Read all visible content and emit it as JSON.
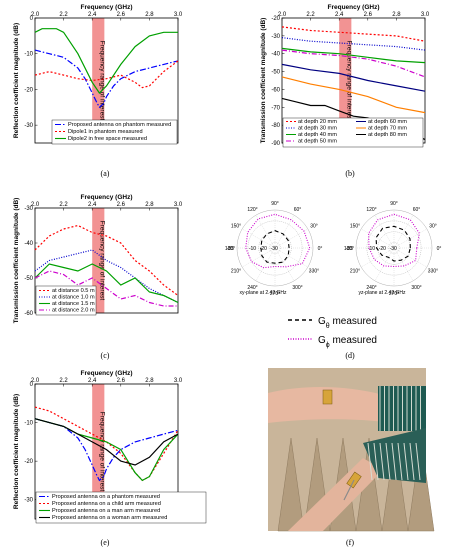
{
  "chart_data": [
    {
      "id": "a",
      "type": "line",
      "panel_label": "(a)",
      "xlabel": "Frequency (GHz)",
      "ylabel": "Reflection coefficient magnitude (dB)",
      "xlim": [
        2.0,
        3.0
      ],
      "ylim": [
        -35,
        0
      ],
      "xticks": [
        "2.0",
        "2.2",
        "2.4",
        "2.6",
        "2.8",
        "3.0"
      ],
      "yticks": [
        "0",
        "-10",
        "-20",
        "-30"
      ],
      "band_label": "Frequency range of interest",
      "band": [
        2.4,
        2.485
      ],
      "legend_position": "bottom",
      "series": [
        {
          "name": "Proposed antenna on phantom measured",
          "color": "#0000ff",
          "dash": "6,2,1.5,2",
          "x": [
            2.0,
            2.1,
            2.2,
            2.3,
            2.35,
            2.4,
            2.43,
            2.45,
            2.48,
            2.5,
            2.55,
            2.6,
            2.7,
            2.8,
            2.9,
            3.0
          ],
          "y": [
            -9,
            -10,
            -11,
            -14,
            -17,
            -21,
            -23.5,
            -25,
            -24,
            -22,
            -19,
            -17,
            -15,
            -14,
            -13,
            -12
          ]
        },
        {
          "name": "Dipole1 in phantom measured",
          "color": "#ff0000",
          "dash": "2,2",
          "x": [
            2.0,
            2.1,
            2.2,
            2.3,
            2.4,
            2.5,
            2.6,
            2.7,
            2.75,
            2.8,
            2.85,
            2.9,
            3.0
          ],
          "y": [
            -16,
            -15,
            -16,
            -17,
            -17.5,
            -17,
            -16,
            -18,
            -19.5,
            -19,
            -17,
            -15,
            -12
          ]
        },
        {
          "name": "Dipole2 in free space measured",
          "color": "#00a000",
          "dash": "",
          "x": [
            2.0,
            2.05,
            2.1,
            2.15,
            2.2,
            2.3,
            2.4,
            2.45,
            2.5,
            2.6,
            2.7,
            2.8,
            2.9,
            3.0
          ],
          "y": [
            -4,
            -3,
            -3,
            -3,
            -4,
            -10,
            -18,
            -21,
            -19,
            -13,
            -8,
            -5,
            -4,
            -4
          ]
        }
      ]
    },
    {
      "id": "b",
      "type": "line",
      "panel_label": "(b)",
      "xlabel": "Frequency (GHz)",
      "ylabel": "Transmission coefficient magnitude (dB)",
      "xlim": [
        2.0,
        3.0
      ],
      "ylim": [
        -90,
        -20
      ],
      "xticks": [
        "2.0",
        "2.2",
        "2.4",
        "2.6",
        "2.8",
        "3.0"
      ],
      "yticks": [
        "-20",
        "-30",
        "-40",
        "-50",
        "-60",
        "-70",
        "-80",
        "-90"
      ],
      "band_label": "Frequency range of interest",
      "band": [
        2.4,
        2.485
      ],
      "legend_position": "bottom",
      "series": [
        {
          "name": "at depth 20 mm",
          "color": "#ff0000",
          "dash": "2,2",
          "x": [
            2.0,
            2.2,
            2.4,
            2.6,
            2.8,
            3.0
          ],
          "y": [
            -25,
            -27,
            -28,
            -29,
            -30,
            -33
          ]
        },
        {
          "name": "at depth 30 mm",
          "color": "#0000cc",
          "dash": "1,1.5",
          "x": [
            2.0,
            2.2,
            2.4,
            2.6,
            2.8,
            3.0
          ],
          "y": [
            -31,
            -33,
            -34,
            -35,
            -36,
            -38
          ]
        },
        {
          "name": "at depth 40 mm",
          "color": "#00a000",
          "dash": "",
          "x": [
            2.0,
            2.2,
            2.4,
            2.6,
            2.8,
            3.0
          ],
          "y": [
            -37,
            -39,
            -40,
            -42,
            -44,
            -45
          ]
        },
        {
          "name": "at depth 50 mm",
          "color": "#cc00cc",
          "dash": "5,2,1,2",
          "x": [
            2.0,
            2.2,
            2.4,
            2.6,
            2.8,
            3.0
          ],
          "y": [
            -38,
            -40,
            -41,
            -43,
            -47,
            -53
          ]
        },
        {
          "name": "at depth 60 mm",
          "color": "#000080",
          "dash": "",
          "x": [
            2.0,
            2.2,
            2.4,
            2.6,
            2.8,
            3.0
          ],
          "y": [
            -46,
            -49,
            -51,
            -55,
            -58,
            -61
          ]
        },
        {
          "name": "at depth 70 mm",
          "color": "#ff7f00",
          "dash": "",
          "x": [
            2.0,
            2.2,
            2.4,
            2.6,
            2.8,
            3.0
          ],
          "y": [
            -53,
            -57,
            -60,
            -64,
            -70,
            -73
          ]
        },
        {
          "name": "at depth 80 mm",
          "color": "#000000",
          "dash": "",
          "x": [
            2.0,
            2.1,
            2.2,
            2.3,
            2.4,
            2.5,
            2.6,
            2.7,
            2.8,
            2.9,
            3.0
          ],
          "y": [
            -65,
            -67,
            -69,
            -69,
            -72,
            -75,
            -76,
            -79,
            -80,
            -85,
            -88
          ]
        }
      ]
    },
    {
      "id": "c",
      "type": "line",
      "panel_label": "(c)",
      "xlabel": "Frequency (GHz)",
      "ylabel": "Transmission coefficient magnitude (dB)",
      "xlim": [
        2.0,
        3.0
      ],
      "ylim": [
        -60,
        -30
      ],
      "xticks": [
        "2.0",
        "2.2",
        "2.4",
        "2.6",
        "2.8",
        "3.0"
      ],
      "yticks": [
        "-30",
        "-40",
        "-50",
        "-60"
      ],
      "band_label": "Frequency range of interest",
      "band": [
        2.4,
        2.485
      ],
      "legend_position": "bottom-left",
      "series": [
        {
          "name": "at distance 0.5 m",
          "color": "#ff0000",
          "dash": "2,2",
          "x": [
            2.0,
            2.1,
            2.2,
            2.3,
            2.4,
            2.5,
            2.6,
            2.7,
            2.8,
            2.9,
            3.0
          ],
          "y": [
            -42,
            -38,
            -36,
            -35,
            -37,
            -38,
            -40,
            -45,
            -48,
            -52,
            -55
          ]
        },
        {
          "name": "at distance 1.0 m",
          "color": "#0000cc",
          "dash": "1,1.5",
          "x": [
            2.0,
            2.1,
            2.2,
            2.3,
            2.4,
            2.5,
            2.6,
            2.7,
            2.8,
            2.9,
            3.0
          ],
          "y": [
            -48,
            -45,
            -44,
            -43,
            -42,
            -45,
            -47,
            -50,
            -53,
            -55,
            -57
          ]
        },
        {
          "name": "at distance 1.5 m",
          "color": "#00a000",
          "dash": "",
          "x": [
            2.0,
            2.1,
            2.2,
            2.3,
            2.4,
            2.5,
            2.6,
            2.7,
            2.8,
            2.9,
            3.0
          ],
          "y": [
            -50,
            -46,
            -47,
            -48,
            -46,
            -48,
            -52,
            -50,
            -54,
            -55,
            -57
          ]
        },
        {
          "name": "at distance 2.0 m",
          "color": "#cc00cc",
          "dash": "5,2,1,2",
          "x": [
            2.0,
            2.1,
            2.2,
            2.3,
            2.4,
            2.5,
            2.6,
            2.7,
            2.8,
            2.9,
            3.0
          ],
          "y": [
            -50,
            -48,
            -49,
            -52,
            -50,
            -53,
            -56,
            -55,
            -57,
            -58,
            -58
          ]
        }
      ]
    },
    {
      "id": "d",
      "type": "polar",
      "panel_label": "(d)",
      "rlim": [
        -35,
        0
      ],
      "rticks": [
        "-10",
        "-20",
        "-30",
        "-35"
      ],
      "angle_labels": [
        "90°",
        "60°",
        "30°",
        "0°",
        "330°",
        "300°",
        "270°",
        "240°",
        "210°",
        "180°",
        "150°",
        "120°"
      ],
      "plots": [
        {
          "caption": "xy-plane at 2.42 GHz",
          "theta_deg": [
            0,
            30,
            60,
            90,
            120,
            150,
            180,
            210,
            240,
            270,
            300,
            330,
            360
          ],
          "g_theta": [
            -22,
            -21,
            -20,
            -19,
            -20,
            -21,
            -22,
            -21,
            -20,
            -21,
            -20,
            -21,
            -22
          ],
          "g_phi": [
            -3,
            -4,
            -5,
            -4,
            -4,
            -6,
            -8,
            -10,
            -14,
            -18,
            -15,
            -6,
            -3
          ]
        },
        {
          "caption": "yz-plane at 2.42 GHz",
          "theta_deg": [
            0,
            30,
            60,
            90,
            120,
            150,
            180,
            210,
            240,
            270,
            300,
            330,
            360
          ],
          "g_theta": [
            -20,
            -18,
            -16,
            -15,
            -14,
            -16,
            -19,
            -22,
            -25,
            -23,
            -22,
            -20,
            -20
          ],
          "g_phi": [
            -14,
            -8,
            -5,
            -4,
            -5,
            -8,
            -12,
            -14,
            -16,
            -18,
            -16,
            -12,
            -14
          ]
        }
      ],
      "legend": [
        {
          "symbol": "G",
          "subscript": "θ",
          "suffix": " measured",
          "color": "#000000",
          "dash": "4,3"
        },
        {
          "symbol": "G",
          "subscript": "ϕ",
          "suffix": " measured",
          "color": "#cc00cc",
          "dash": "1,1.5"
        }
      ]
    },
    {
      "id": "e",
      "type": "line",
      "panel_label": "(e)",
      "xlabel": "Frequency (GHz)",
      "ylabel": "Reflection coefficient magnitude (dB)",
      "xlim": [
        2.0,
        3.0
      ],
      "ylim": [
        -35,
        0
      ],
      "xticks": [
        "2.0",
        "2.2",
        "2.4",
        "2.6",
        "2.8",
        "3.0"
      ],
      "yticks": [
        "0",
        "-10",
        "-20",
        "-30"
      ],
      "band_label": "Frequency range of interest",
      "band": [
        2.4,
        2.485
      ],
      "legend_position": "bottom",
      "series": [
        {
          "name": "Proposed antenna on a phantom measured",
          "color": "#0000ff",
          "dash": "6,2,1.5,2",
          "x": [
            2.0,
            2.1,
            2.2,
            2.3,
            2.35,
            2.4,
            2.43,
            2.45,
            2.48,
            2.5,
            2.55,
            2.6,
            2.7,
            2.8,
            2.9,
            3.0
          ],
          "y": [
            -9,
            -10,
            -11,
            -14,
            -17,
            -21,
            -23.5,
            -25,
            -24,
            -22,
            -19,
            -17,
            -15,
            -14,
            -13,
            -12
          ]
        },
        {
          "name": "Proposed antenna on a child arm measured",
          "color": "#ff0000",
          "dash": "2,2",
          "x": [
            2.0,
            2.1,
            2.2,
            2.3,
            2.4,
            2.5,
            2.6,
            2.7,
            2.75,
            2.8,
            2.9,
            3.0
          ],
          "y": [
            -6,
            -7,
            -9,
            -11,
            -13,
            -15,
            -18,
            -23,
            -25,
            -24,
            -18,
            -12
          ]
        },
        {
          "name": "Proposed antenna on a man arm measured",
          "color": "#00a000",
          "dash": "",
          "x": [
            2.0,
            2.1,
            2.2,
            2.3,
            2.4,
            2.5,
            2.6,
            2.7,
            2.75,
            2.8,
            2.9,
            3.0
          ],
          "y": [
            -9,
            -10,
            -11,
            -13,
            -14,
            -15,
            -17,
            -23,
            -25,
            -24,
            -17,
            -13
          ]
        },
        {
          "name": "Proposed antenna on a woman arm measured",
          "color": "#000000",
          "dash": "",
          "x": [
            2.0,
            2.1,
            2.2,
            2.3,
            2.4,
            2.5,
            2.6,
            2.7,
            2.8,
            2.9,
            3.0
          ],
          "y": [
            -9,
            -10,
            -11,
            -13,
            -15,
            -17,
            -20,
            -21,
            -19,
            -15,
            -13
          ]
        }
      ]
    },
    {
      "id": "f",
      "type": "photo",
      "panel_label": "(f)"
    }
  ]
}
